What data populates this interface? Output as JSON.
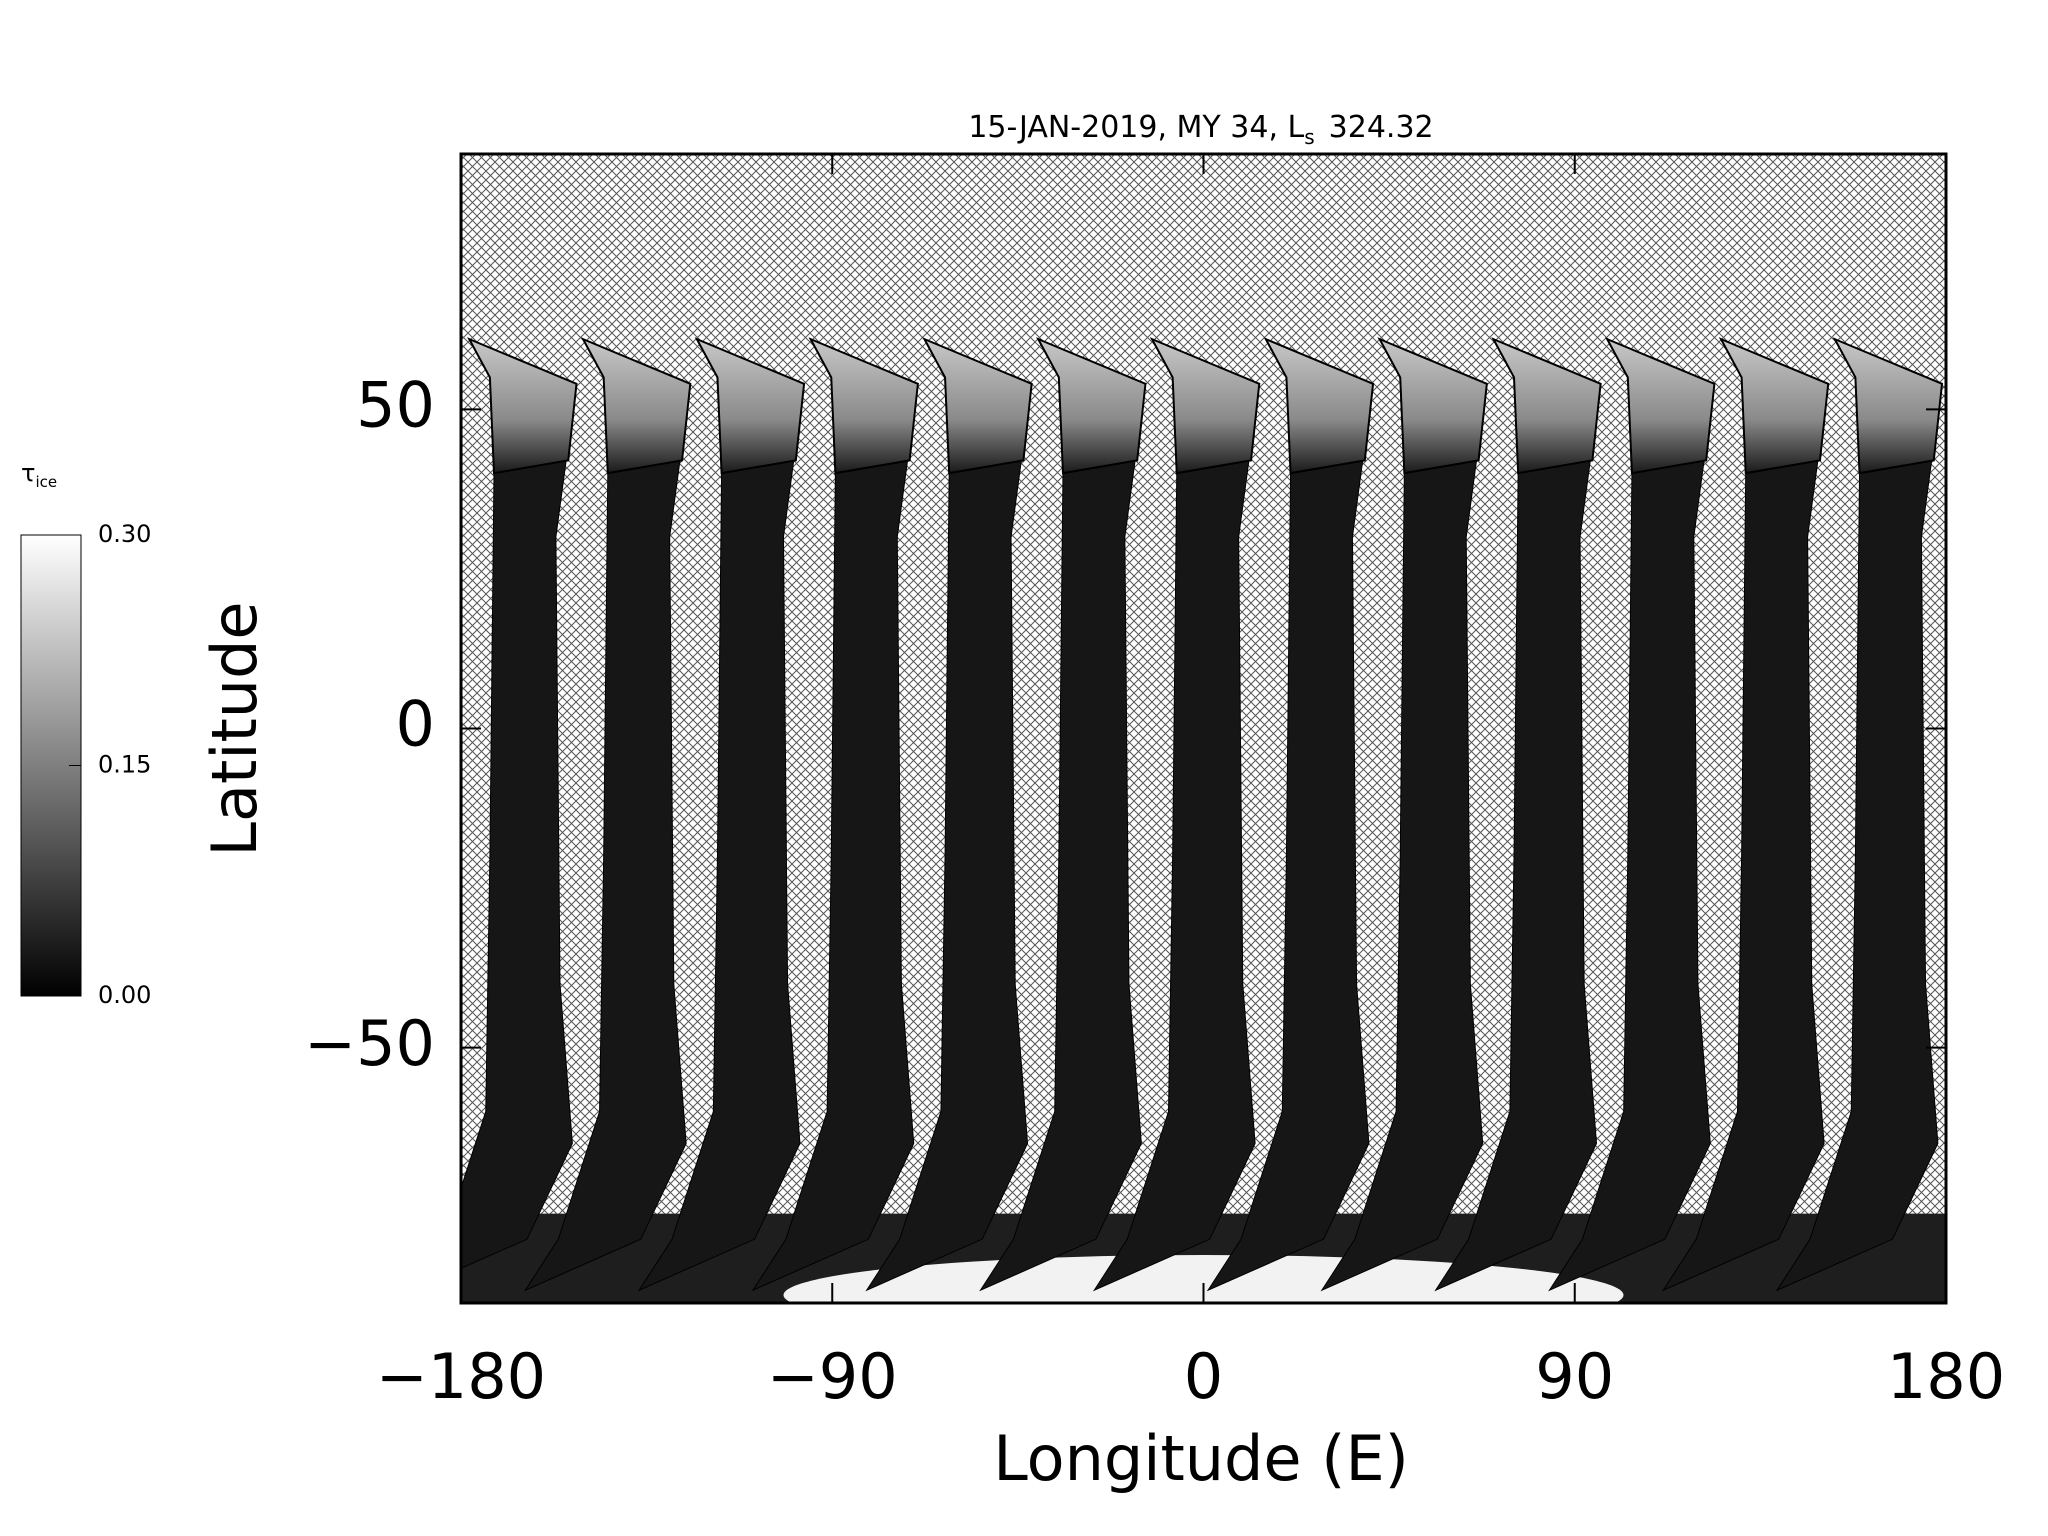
{
  "chart_data": {
    "type": "map",
    "title": "15-JAN-2019, MY 34,  L",
    "title_subscript": "s",
    "ls": 324.32,
    "xlabel": "Longitude (E)",
    "ylabel": "Latitude",
    "xlim": [
      -180,
      180
    ],
    "xticks": [
      {
        "value": -180,
        "label": "−180"
      },
      {
        "value": -90,
        "label": "−90"
      },
      0,
      90,
      180
    ],
    "ylim": [
      -90,
      90
    ],
    "yticks": [
      {
        "value": -50,
        "label": "−50"
      },
      0,
      50
    ],
    "colorbar": {
      "label": "τ",
      "label_subscript": "ice",
      "lim": [
        0,
        0.3
      ],
      "ticks": [
        {
          "value": 0,
          "label": "0.00"
        },
        {
          "value": 0.15,
          "label": "0.15"
        },
        {
          "value": 0.3,
          "label": "0.30"
        }
      ]
    }
  }
}
